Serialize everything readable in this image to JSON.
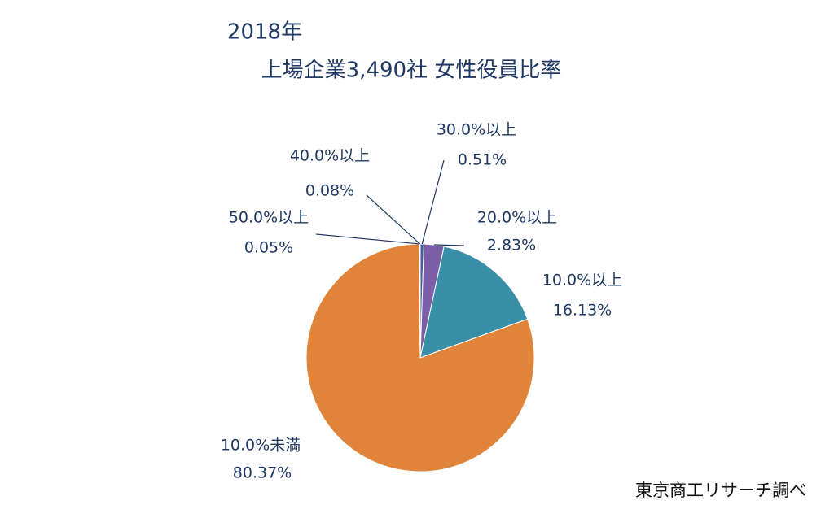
{
  "chart_data": {
    "type": "pie",
    "title": "2018年",
    "subtitle": "上場企業3,490社 女性役員比率",
    "source": "東京商工リサーチ調べ",
    "categories": [
      "30.0%以上",
      "20.0%以上",
      "10.0%以上",
      "10.0%未満",
      "50.0%以上",
      "40.0%以上"
    ],
    "values": [
      0.51,
      2.83,
      16.13,
      80.37,
      0.05,
      0.08
    ],
    "value_labels": [
      "0.51%",
      "2.83%",
      "16.13%",
      "80.37%",
      "0.05%",
      "0.08%"
    ],
    "colors": [
      "#4b5d9c",
      "#7b5ea7",
      "#3a8fa8",
      "#e0843a",
      "#c0504d",
      "#9bbb59"
    ]
  }
}
